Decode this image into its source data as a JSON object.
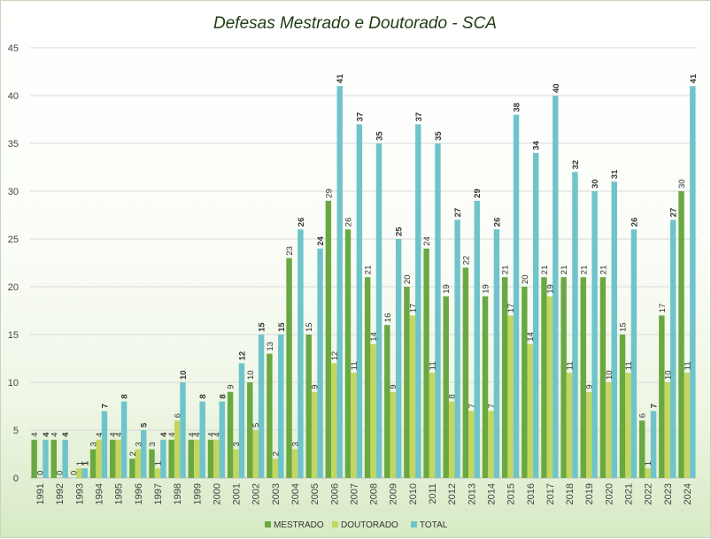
{
  "chart_data": {
    "type": "bar",
    "title": "Defesas Mestrado e Doutorado - SCA",
    "xlabel": "",
    "ylabel": "",
    "ylim": [
      0,
      45
    ],
    "yticks": [
      0,
      5,
      10,
      15,
      20,
      25,
      30,
      35,
      40,
      45
    ],
    "grid": true,
    "legend_position": "bottom",
    "categories": [
      "1991",
      "1992",
      "1993",
      "1994",
      "1995",
      "1996",
      "1997",
      "1998",
      "1999",
      "2000",
      "2001",
      "2002",
      "2003",
      "2004",
      "2005",
      "2006",
      "2007",
      "2008",
      "2009",
      "2010",
      "2011",
      "2012",
      "2013",
      "2014",
      "2015",
      "2016",
      "2017",
      "2018",
      "2019",
      "2020",
      "2021",
      "2022",
      "2023",
      "2024"
    ],
    "series": [
      {
        "name": "MESTRADO",
        "color": "#6aa842",
        "values": [
          4,
          4,
          0,
          3,
          4,
          2,
          3,
          4,
          4,
          4,
          9,
          10,
          13,
          23,
          15,
          29,
          26,
          21,
          16,
          20,
          24,
          19,
          22,
          19,
          21,
          20,
          21,
          21,
          21,
          21,
          15,
          6,
          17,
          30
        ]
      },
      {
        "name": "DOUTORADO",
        "color": "#c2d660",
        "values": [
          0,
          0,
          1,
          4,
          4,
          3,
          1,
          6,
          4,
          4,
          3,
          5,
          2,
          3,
          9,
          12,
          11,
          14,
          9,
          17,
          11,
          8,
          7,
          7,
          17,
          14,
          19,
          11,
          9,
          10,
          11,
          1,
          10,
          11
        ]
      },
      {
        "name": "TOTAL",
        "color": "#6fc4cb",
        "values": [
          4,
          4,
          1,
          7,
          8,
          5,
          4,
          10,
          8,
          8,
          12,
          15,
          15,
          26,
          24,
          41,
          37,
          35,
          25,
          37,
          35,
          27,
          29,
          26,
          38,
          34,
          40,
          32,
          30,
          31,
          26,
          7,
          27,
          41
        ]
      }
    ]
  }
}
